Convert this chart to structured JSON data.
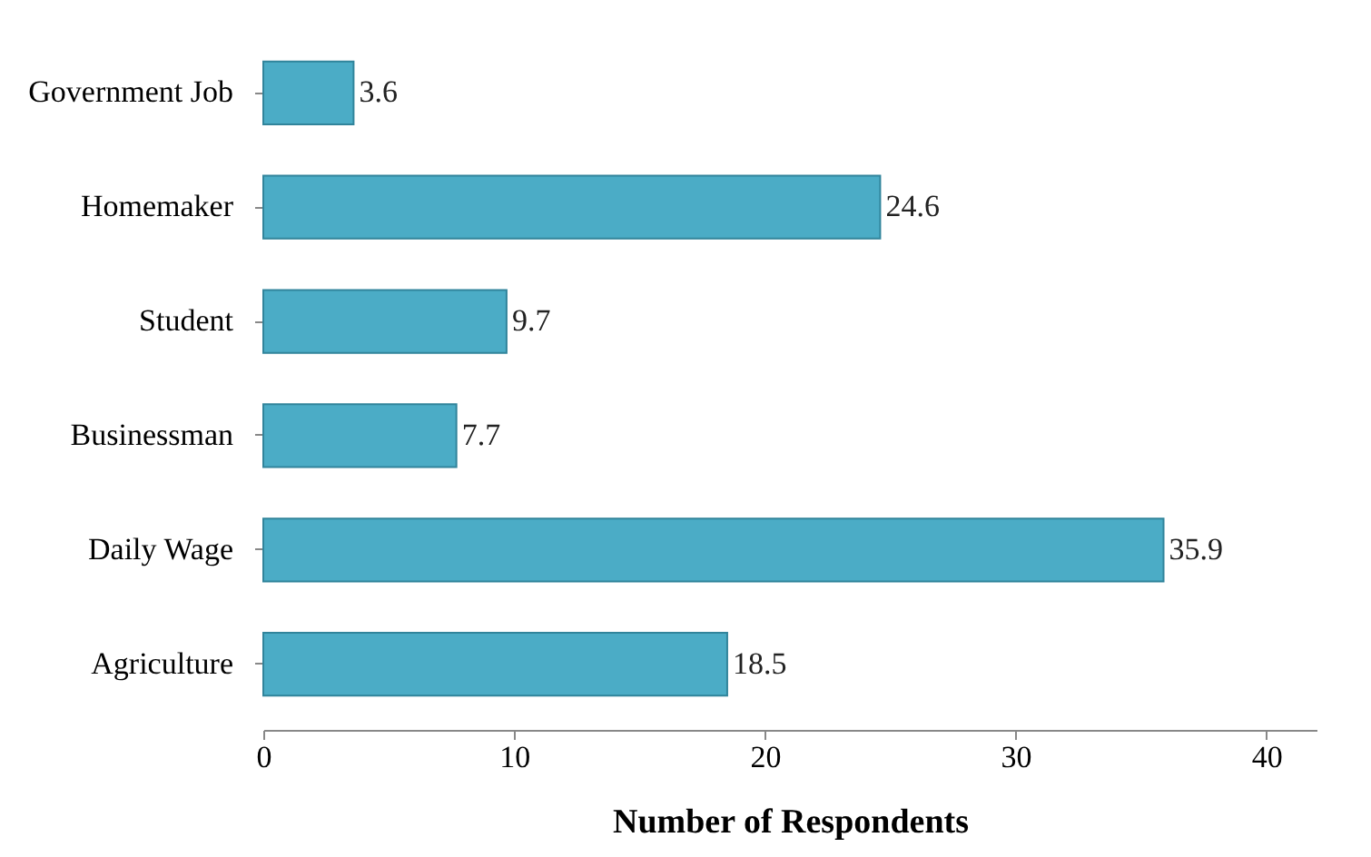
{
  "chart_data": {
    "type": "bar",
    "orientation": "horizontal",
    "xlabel": "Number of Respondents",
    "categories": [
      "Government Job",
      "Homemaker",
      "Student",
      "Businessman",
      "Daily Wage",
      "Agriculture"
    ],
    "values": [
      3.6,
      24.6,
      9.7,
      7.7,
      35.9,
      18.5
    ],
    "color": "#4bacc6",
    "xlim": [
      0,
      42
    ],
    "xticks": [
      0,
      10,
      20,
      30,
      40
    ],
    "data_labels": true,
    "grid": false
  }
}
